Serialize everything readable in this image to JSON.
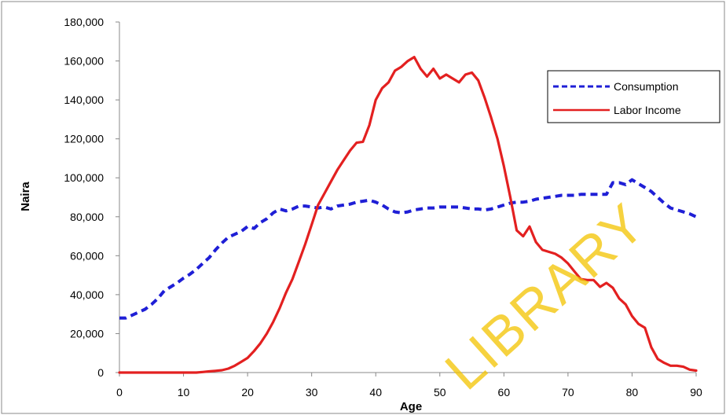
{
  "chart_data": {
    "type": "line",
    "title": "",
    "xlabel": "Age",
    "ylabel": "Naira",
    "xlim": [
      0,
      90
    ],
    "ylim": [
      0,
      180000
    ],
    "xticks": [
      0,
      10,
      20,
      30,
      40,
      50,
      60,
      70,
      80,
      90
    ],
    "yticks": [
      0,
      20000,
      40000,
      60000,
      80000,
      100000,
      120000,
      140000,
      160000,
      180000
    ],
    "ytick_labels": [
      "0",
      "20,000",
      "40,000",
      "60,000",
      "80,000",
      "100,000",
      "120,000",
      "140,000",
      "160,000",
      "180,000"
    ],
    "grid": false,
    "legend_position": "top-right",
    "watermark": "LIBRARY",
    "series": [
      {
        "name": "Consumption",
        "color": "#1f1fd6",
        "style": "dashed",
        "x": [
          0,
          1,
          2,
          3,
          4,
          5,
          6,
          7,
          8,
          9,
          10,
          11,
          12,
          13,
          14,
          15,
          16,
          17,
          18,
          19,
          20,
          21,
          22,
          23,
          24,
          25,
          26,
          27,
          28,
          29,
          30,
          31,
          32,
          33,
          34,
          35,
          36,
          37,
          38,
          39,
          40,
          41,
          42,
          43,
          44,
          45,
          46,
          47,
          48,
          49,
          50,
          51,
          52,
          53,
          54,
          55,
          56,
          57,
          58,
          59,
          60,
          61,
          62,
          63,
          64,
          65,
          66,
          67,
          68,
          69,
          70,
          71,
          72,
          73,
          74,
          75,
          76,
          77,
          78,
          79,
          80,
          81,
          82,
          83,
          84,
          85,
          86,
          87,
          88,
          89,
          90
        ],
        "values": [
          28000,
          28000,
          29500,
          31000,
          32500,
          35000,
          38000,
          42000,
          44000,
          46000,
          48500,
          50500,
          53000,
          56000,
          59000,
          63000,
          66500,
          69500,
          71000,
          72500,
          75000,
          74000,
          77000,
          79000,
          82000,
          84000,
          83000,
          84000,
          85500,
          85500,
          85000,
          84500,
          85000,
          84000,
          85500,
          86000,
          86500,
          87500,
          88000,
          88500,
          87500,
          86000,
          84000,
          82500,
          82000,
          82500,
          83500,
          84000,
          84500,
          84500,
          85000,
          85000,
          85000,
          85000,
          84500,
          84000,
          84000,
          83500,
          84000,
          85000,
          86000,
          87000,
          87500,
          87500,
          88000,
          89000,
          89500,
          90000,
          90500,
          91000,
          91000,
          91000,
          91500,
          91500,
          91500,
          91500,
          91500,
          97500,
          97500,
          96500,
          99000,
          97000,
          95000,
          93000,
          90000,
          87000,
          84500,
          83500,
          82500,
          81500,
          80000
        ]
      },
      {
        "name": "Labor Income",
        "color": "#e32020",
        "style": "solid",
        "x": [
          0,
          1,
          2,
          3,
          4,
          5,
          6,
          7,
          8,
          9,
          10,
          11,
          12,
          13,
          14,
          15,
          16,
          17,
          18,
          19,
          20,
          21,
          22,
          23,
          24,
          25,
          26,
          27,
          28,
          29,
          30,
          31,
          32,
          33,
          34,
          35,
          36,
          37,
          38,
          39,
          40,
          41,
          42,
          43,
          44,
          45,
          46,
          47,
          48,
          49,
          50,
          51,
          52,
          53,
          54,
          55,
          56,
          57,
          58,
          59,
          60,
          61,
          62,
          63,
          64,
          65,
          66,
          67,
          68,
          69,
          70,
          71,
          72,
          73,
          74,
          75,
          76,
          77,
          78,
          79,
          80,
          81,
          82,
          83,
          84,
          85,
          86,
          87,
          88,
          89,
          90
        ],
        "values": [
          0,
          0,
          0,
          0,
          0,
          0,
          0,
          0,
          0,
          0,
          0,
          0,
          0,
          300,
          600,
          900,
          1200,
          2000,
          3500,
          5500,
          7500,
          11000,
          15000,
          20000,
          26000,
          33000,
          41000,
          48000,
          57000,
          66000,
          76000,
          86000,
          92000,
          98000,
          104000,
          109000,
          114000,
          118000,
          118500,
          127000,
          140000,
          146000,
          149000,
          155000,
          157000,
          160000,
          162000,
          156000,
          152000,
          156000,
          151000,
          153000,
          151000,
          149000,
          153000,
          154000,
          150000,
          141000,
          131000,
          120000,
          106000,
          90000,
          73000,
          70000,
          75000,
          67000,
          63000,
          62000,
          61000,
          59000,
          56000,
          52000,
          48000,
          47500,
          47500,
          44000,
          46000,
          43500,
          38000,
          35000,
          29000,
          25000,
          23000,
          13000,
          7000,
          5000,
          3500,
          3500,
          3000,
          1500,
          1000
        ]
      }
    ]
  }
}
